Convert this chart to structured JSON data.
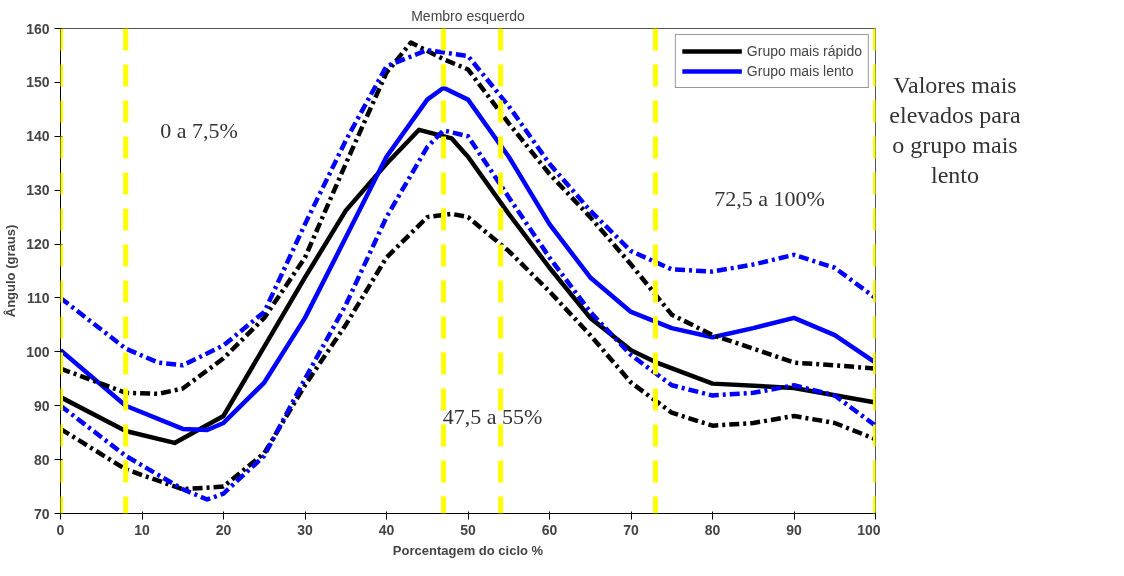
{
  "chart_data": {
    "type": "line",
    "title": "Membro esquerdo",
    "xlabel": "Porcentagem do ciclo %",
    "ylabel": "Ângulo (graus)",
    "xlim": [
      0,
      100
    ],
    "ylim": [
      70,
      160
    ],
    "xticks": [
      0,
      10,
      20,
      30,
      40,
      50,
      60,
      70,
      80,
      90,
      100
    ],
    "yticks": [
      70,
      80,
      90,
      100,
      110,
      120,
      130,
      140,
      150,
      160
    ],
    "grid": false,
    "legend": "top right",
    "series": [
      {
        "name": "Grupo mais rápido",
        "color": "#000000",
        "line_style": "solid",
        "x": [
          0,
          8,
          14,
          20,
          30,
          35,
          40,
          44,
          48,
          50,
          55,
          60,
          65,
          70,
          73,
          80,
          90,
          100
        ],
        "values": [
          91.6,
          85.3,
          83.1,
          88.1,
          113.8,
          126.2,
          134.9,
          141.2,
          139.6,
          136.2,
          125.6,
          115.6,
          106.3,
          100.3,
          98.1,
          94.1,
          93.3,
          90.6
        ]
      },
      {
        "name": "Grupo mais lento",
        "color": "#0000ff",
        "line_style": "solid",
        "x": [
          0,
          8,
          15,
          18,
          20,
          25,
          30,
          35,
          40,
          45,
          47,
          50,
          55,
          60,
          65,
          70,
          75,
          80,
          85,
          90,
          95,
          100
        ],
        "values": [
          100.3,
          90,
          85.7,
          85.5,
          86.8,
          94.3,
          106.3,
          121.2,
          136.2,
          146.8,
          149,
          146.8,
          136.2,
          123.7,
          113.8,
          107.4,
          104.4,
          102.7,
          104.4,
          106.3,
          103.1,
          98
        ]
      },
      {
        "color": "#000000",
        "line_style": "dashed",
        "x": [
          0,
          8,
          12,
          15,
          20,
          25,
          30,
          35,
          40,
          43,
          47,
          50,
          55,
          60,
          65,
          70,
          75,
          80,
          85,
          90,
          95,
          100
        ],
        "values": [
          96.9,
          92.4,
          92.2,
          93.2,
          98.8,
          106.3,
          117.5,
          134.9,
          151.8,
          157.4,
          154.3,
          152.4,
          142.4,
          133,
          125,
          116.2,
          106.9,
          103.1,
          100.6,
          98,
          97.5,
          96.9
        ]
      },
      {
        "color": "#000000",
        "line_style": "dashed",
        "x": [
          0,
          8,
          15,
          20,
          25,
          30,
          35,
          40,
          45,
          48,
          50,
          55,
          60,
          65,
          70,
          75,
          80,
          85,
          90,
          95,
          100
        ],
        "values": [
          85.7,
          78.2,
          74.5,
          75,
          81.2,
          93.8,
          105,
          117.5,
          125,
          125.6,
          125,
          118.7,
          111.2,
          103.1,
          94.3,
          88.7,
          86.3,
          86.8,
          88.1,
          86.8,
          83.8
        ]
      },
      {
        "color": "#0000ff",
        "line_style": "dashed",
        "x": [
          0,
          8,
          12,
          15,
          20,
          25,
          30,
          35,
          40,
          45,
          50,
          55,
          60,
          65,
          70,
          75,
          80,
          85,
          90,
          95,
          100
        ],
        "values": [
          110,
          100.6,
          98,
          97.5,
          101.2,
          107.4,
          123.7,
          139.2,
          153,
          156,
          154.9,
          145.6,
          134.9,
          126.2,
          118.7,
          115.3,
          114.9,
          116.2,
          118,
          115.6,
          110
        ]
      },
      {
        "color": "#0000ff",
        "line_style": "dashed",
        "x": [
          0,
          8,
          15,
          18,
          20,
          25,
          30,
          35,
          40,
          45,
          47,
          50,
          55,
          60,
          65,
          70,
          75,
          80,
          85,
          90,
          95,
          100
        ],
        "values": [
          90,
          80.7,
          74.5,
          72.6,
          73.7,
          80.7,
          95,
          108.7,
          125,
          138,
          141.1,
          140,
          128.7,
          117.5,
          107.4,
          99.4,
          93.8,
          91.9,
          92.4,
          93.8,
          91.9,
          86.3
        ]
      }
    ],
    "ref_lines": [
      {
        "axis": "x",
        "value": 0,
        "color": "#ffff00",
        "line_style": "dashed"
      },
      {
        "axis": "x",
        "value": 8,
        "color": "#ffff00",
        "line_style": "dashed"
      },
      {
        "axis": "x",
        "value": 47,
        "color": "#ffff00",
        "line_style": "dashed"
      },
      {
        "axis": "x",
        "value": 54,
        "color": "#ffff00",
        "line_style": "dashed"
      },
      {
        "axis": "x",
        "value": 73,
        "color": "#ffff00",
        "line_style": "dashed"
      },
      {
        "axis": "x",
        "value": 100,
        "color": "#ffff00",
        "line_style": "dashed"
      }
    ],
    "annotations": [
      "0 a 7,5%",
      "47,5 a 55%",
      "72,5 a 100%",
      "Valores mais elevados para o grupo mais lento"
    ]
  }
}
